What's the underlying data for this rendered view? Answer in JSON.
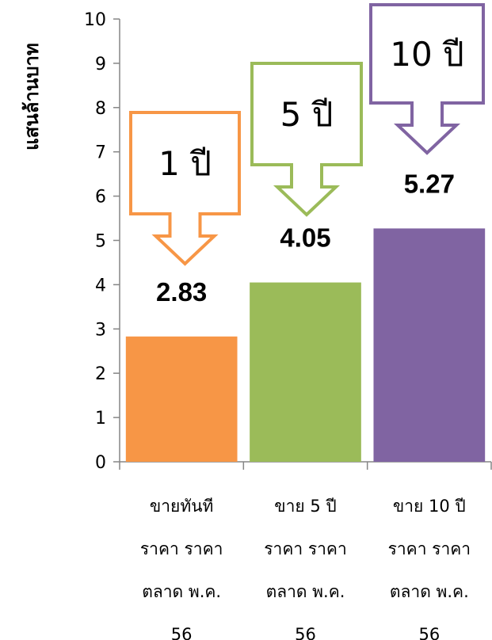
{
  "chart_data": {
    "type": "bar",
    "ylabel": "แสนล้านบาท",
    "ylim": [
      0,
      10
    ],
    "yticks": [
      0,
      1,
      2,
      3,
      4,
      5,
      6,
      7,
      8,
      9,
      10
    ],
    "grid": false,
    "categories": [
      [
        "ขายทันที",
        "ราคา ราคา",
        "ตลาด พ.ค.",
        "56"
      ],
      [
        "ขาย 5 ปี",
        "ราคา ราคา",
        "ตลาด พ.ค.",
        "56"
      ],
      [
        "ขาย 10 ปี",
        "ราคา ราคา",
        "ตลาด พ.ค.",
        "56"
      ]
    ],
    "values": [
      2.83,
      4.05,
      5.27
    ],
    "data_labels": [
      "2.83",
      "4.05",
      "5.27"
    ],
    "colors": [
      "#F79646",
      "#9BBB59",
      "#8064A2"
    ],
    "annotations": [
      {
        "text": "1 ปี",
        "color": "#F79646"
      },
      {
        "text": "5 ปี",
        "color": "#9BBB59"
      },
      {
        "text": "10 ปี",
        "color": "#8064A2"
      }
    ]
  }
}
